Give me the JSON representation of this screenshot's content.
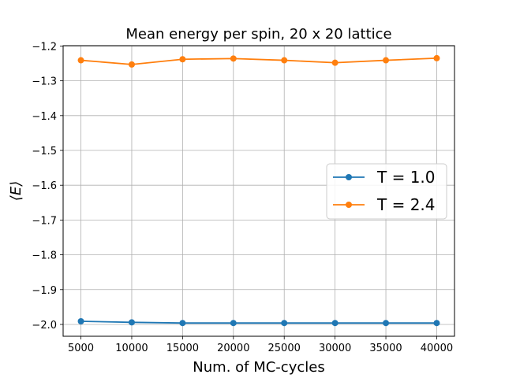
{
  "chart_data": {
    "type": "line",
    "title": "Mean energy per spin, 20 x 20 lattice",
    "xlabel": "Num. of MC-cycles",
    "ylabel": "⟨E⟩",
    "x": [
      5000,
      10000,
      15000,
      20000,
      25000,
      30000,
      35000,
      40000
    ],
    "xticks": [
      5000,
      10000,
      15000,
      20000,
      25000,
      30000,
      35000,
      40000
    ],
    "yticks": [
      -2.0,
      -1.9,
      -1.8,
      -1.7,
      -1.6,
      -1.5,
      -1.4,
      -1.3,
      -1.2
    ],
    "ytick_labels": [
      "−2.0",
      "−1.9",
      "−1.8",
      "−1.7",
      "−1.6",
      "−1.5",
      "−1.4",
      "−1.3",
      "−1.2"
    ],
    "xlim": [
      3250,
      41750
    ],
    "ylim": [
      -2.034,
      -1.199
    ],
    "grid": true,
    "legend_position": "center-right",
    "series": [
      {
        "name": "T = 1.0",
        "color": "#1f77b4",
        "values": [
          -1.991,
          -1.994,
          -1.996,
          -1.996,
          -1.996,
          -1.996,
          -1.996,
          -1.996
        ]
      },
      {
        "name": "T = 2.4",
        "color": "#ff7f0e",
        "values": [
          -1.241,
          -1.253,
          -1.238,
          -1.236,
          -1.241,
          -1.248,
          -1.241,
          -1.235
        ]
      }
    ]
  }
}
